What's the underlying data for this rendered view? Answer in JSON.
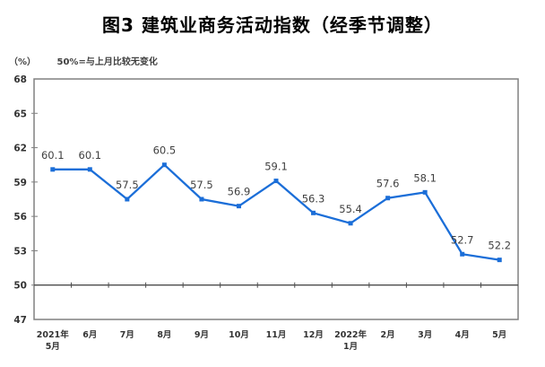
{
  "title": "图3 建筑业商务活动指数（经季节调整）",
  "y_axis_unit": "（%）",
  "note": "50%=与上月比较无变化",
  "chart_data": {
    "type": "line",
    "title": "图3 建筑业商务活动指数（经季节调整）",
    "subtitle_note": "50%=与上月比较无变化",
    "ylabel": "（%）",
    "xlabel": "",
    "categories": [
      "2021年\n5月",
      "6月",
      "7月",
      "8月",
      "9月",
      "10月",
      "11月",
      "12月",
      "2022年\n1月",
      "2月",
      "3月",
      "4月",
      "5月"
    ],
    "values": [
      60.1,
      60.1,
      57.5,
      60.5,
      57.5,
      56.9,
      59.1,
      56.3,
      55.4,
      57.6,
      58.1,
      52.7,
      52.2
    ],
    "ylim": [
      47,
      68
    ],
    "yticks": [
      47,
      50,
      53,
      56,
      59,
      62,
      65,
      68
    ],
    "reference_line": 50,
    "grid": false,
    "legend": "none",
    "line_color": "#1b6ed8",
    "marker": "square",
    "label_color": "#3f3f3f",
    "axis_color": "#808080",
    "ref_line_color": "#4d4d4d",
    "tick_label_color": "#333333"
  }
}
